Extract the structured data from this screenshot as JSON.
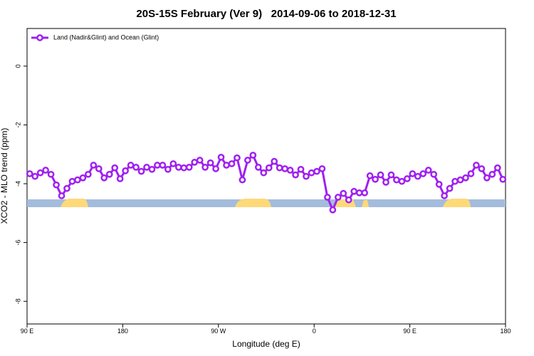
{
  "chart_data": {
    "type": "line",
    "title": "20S-15S February (Ver 9)   2014-09-06 to 2018-12-31",
    "xlabel": "Longitude (deg E)",
    "ylabel": "XCO2 - MLO trend (ppm)",
    "xlim": [
      90,
      540
    ],
    "ylim": [
      -8.77,
      1.28
    ],
    "xticks": [
      {
        "value": 90,
        "label": "90 E"
      },
      180,
      {
        "value": 270,
        "label": "90 W"
      },
      {
        "value": 360,
        "label": "0"
      },
      {
        "value": 450,
        "label": "90 E"
      },
      {
        "value": 540,
        "label": "180"
      }
    ],
    "yticks": [
      0,
      -2,
      -4,
      -6,
      -8
    ],
    "legend": "top-left",
    "x": [
      92.5,
      97.5,
      102.5,
      107.5,
      112.5,
      117.5,
      122.5,
      127.5,
      132.5,
      137.5,
      142.5,
      147.5,
      152.5,
      157.5,
      162.5,
      167.5,
      172.5,
      177.5,
      182.5,
      187.5,
      192.5,
      197.5,
      202.5,
      207.5,
      212.5,
      217.5,
      222.5,
      227.5,
      232.5,
      237.5,
      242.5,
      247.5,
      252.5,
      257.5,
      262.5,
      267.5,
      272.5,
      277.5,
      282.5,
      287.5,
      292.5,
      297.5,
      302.5,
      307.5,
      312.5,
      317.5,
      322.5,
      327.5,
      332.5,
      337.5,
      342.5,
      347.5,
      352.5,
      357.5,
      362.5,
      367.5,
      372.5,
      377.5,
      382.5,
      387.5,
      392.5,
      397.5,
      402.5,
      407.5,
      412.5,
      417.5,
      422.5,
      427.5,
      432.5,
      437.5,
      442.5,
      447.5,
      452.5,
      457.5,
      462.5,
      467.5,
      472.5,
      477.5,
      482.5,
      487.5,
      492.5,
      497.5,
      502.5,
      507.5,
      512.5,
      517.5,
      522.5,
      527.5,
      532.5,
      537.5
    ],
    "series": [
      {
        "name": "Land (Nadir&Glint) and Ocean (Glint)",
        "color": "#a020f0",
        "values": [
          -3.66,
          -3.75,
          -3.63,
          -3.54,
          -3.68,
          -4.04,
          -4.41,
          -4.16,
          -3.92,
          -3.87,
          -3.8,
          -3.68,
          -3.37,
          -3.49,
          -3.8,
          -3.68,
          -3.46,
          -3.83,
          -3.56,
          -3.37,
          -3.44,
          -3.58,
          -3.44,
          -3.51,
          -3.37,
          -3.37,
          -3.51,
          -3.32,
          -3.44,
          -3.46,
          -3.44,
          -3.27,
          -3.2,
          -3.44,
          -3.29,
          -3.49,
          -3.1,
          -3.37,
          -3.32,
          -3.12,
          -3.87,
          -3.2,
          -3.03,
          -3.44,
          -3.63,
          -3.46,
          -3.24,
          -3.46,
          -3.49,
          -3.54,
          -3.7,
          -3.51,
          -3.75,
          -3.63,
          -3.58,
          -3.49,
          -4.46,
          -4.89,
          -4.46,
          -4.33,
          -4.55,
          -4.26,
          -4.31,
          -4.31,
          -3.73,
          -3.85,
          -3.7,
          -3.95,
          -3.7,
          -3.87,
          -3.92,
          -3.83,
          -3.66,
          -3.75,
          -3.66,
          -3.54,
          -3.68,
          -4.02,
          -4.41,
          -4.16,
          -3.92,
          -3.87,
          -3.8,
          -3.66,
          -3.37,
          -3.49,
          -3.8,
          -3.68,
          -3.46,
          -3.85
        ]
      }
    ]
  }
}
